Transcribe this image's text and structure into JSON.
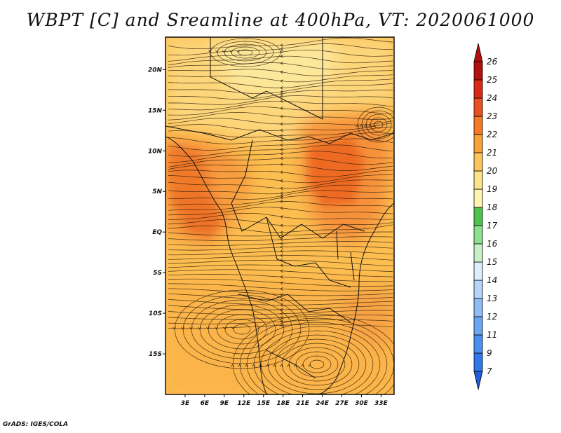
{
  "title": "WBPT [C] and Sreamline at 400hPa, VT: 2020061000",
  "credit": "GrADS: IGES/COLA",
  "chart_data": {
    "type": "heatmap",
    "variable": "wet-bulb potential temperature with streamlines",
    "level": "400hPa",
    "valid_time": "2020061000",
    "xlim": [
      0,
      35
    ],
    "ylim": [
      -20,
      24
    ],
    "x_ticks": [
      {
        "value": 3,
        "label": "3E"
      },
      {
        "value": 6,
        "label": "6E"
      },
      {
        "value": 9,
        "label": "9E"
      },
      {
        "value": 12,
        "label": "12E"
      },
      {
        "value": 15,
        "label": "15E"
      },
      {
        "value": 18,
        "label": "18E"
      },
      {
        "value": 21,
        "label": "21E"
      },
      {
        "value": 24,
        "label": "24E"
      },
      {
        "value": 27,
        "label": "27E"
      },
      {
        "value": 30,
        "label": "30E"
      },
      {
        "value": 33,
        "label": "33E"
      }
    ],
    "y_ticks": [
      {
        "value": 20,
        "label": "20N"
      },
      {
        "value": 15,
        "label": "15N"
      },
      {
        "value": 10,
        "label": "10N"
      },
      {
        "value": 5,
        "label": "5N"
      },
      {
        "value": 0,
        "label": "EQ"
      },
      {
        "value": -5,
        "label": "5S"
      },
      {
        "value": -10,
        "label": "10S"
      },
      {
        "value": -15,
        "label": "15S"
      }
    ],
    "colorbar": {
      "labels": [
        "7",
        "9",
        "11",
        "12",
        "13",
        "14",
        "15",
        "16",
        "17",
        "18",
        "19",
        "20",
        "21",
        "22",
        "23",
        "24",
        "25",
        "26"
      ],
      "colors": [
        "#1f5fd8",
        "#2f78e8",
        "#4a90ee",
        "#6aa6f2",
        "#8fbcf5",
        "#b4d4f8",
        "#dcefff",
        "#c8f0c8",
        "#8ee08e",
        "#4cc44c",
        "#fff5b0",
        "#fde38a",
        "#fcc45c",
        "#f9a23a",
        "#f47a26",
        "#ea5020",
        "#d92a14",
        "#b30f0c",
        "#b30f0c"
      ]
    },
    "value_range": [
      19,
      24
    ],
    "regions": [
      {
        "name": "west-africa maximum",
        "value": 23
      },
      {
        "name": "east-sahel maximum",
        "value": 24
      },
      {
        "name": "south-west maximum",
        "value": 23
      },
      {
        "name": "north sahara minimum",
        "value": 19
      },
      {
        "name": "background",
        "value": 21
      }
    ]
  }
}
